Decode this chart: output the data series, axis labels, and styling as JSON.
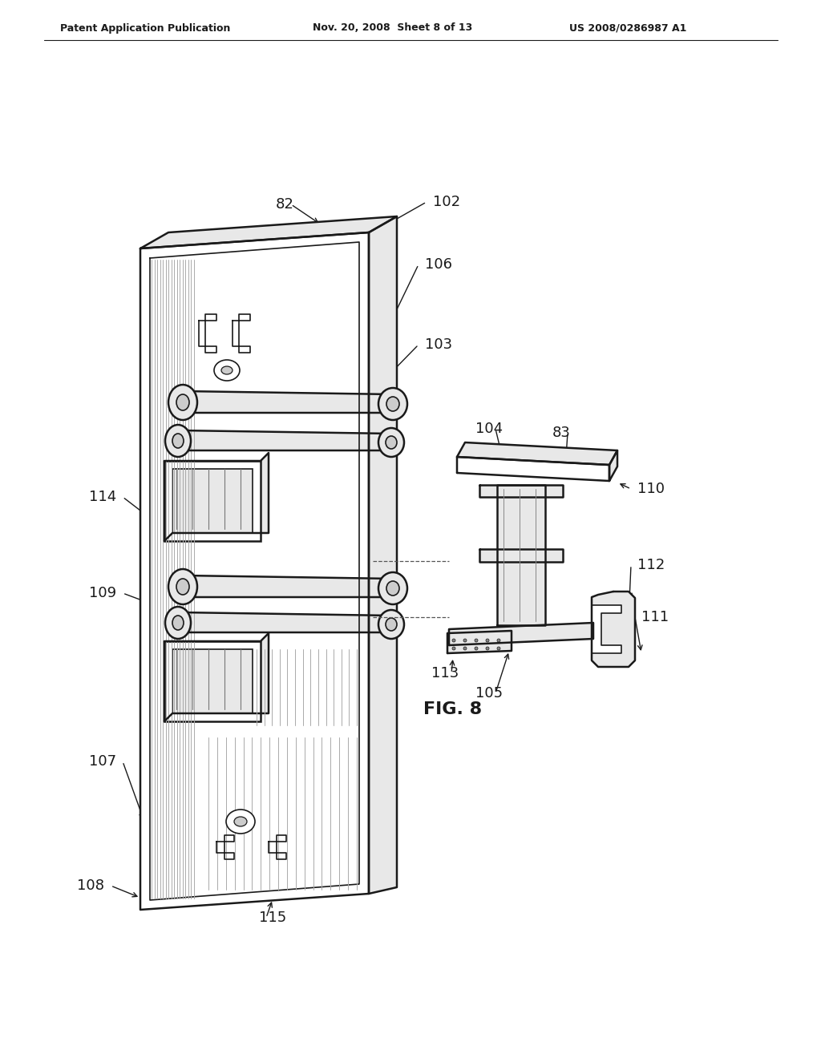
{
  "background_color": "#ffffff",
  "header_left": "Patent Application Publication",
  "header_mid": "Nov. 20, 2008  Sheet 8 of 13",
  "header_right": "US 2008/0286987 A1",
  "fig_label": "FIG. 8",
  "line_color": "#1a1a1a",
  "text_color": "#1a1a1a",
  "gray_light": "#e8e8e8",
  "gray_mid": "#cccccc",
  "gray_dark": "#999999",
  "label_fontsize": 13,
  "header_fontsize": 9
}
